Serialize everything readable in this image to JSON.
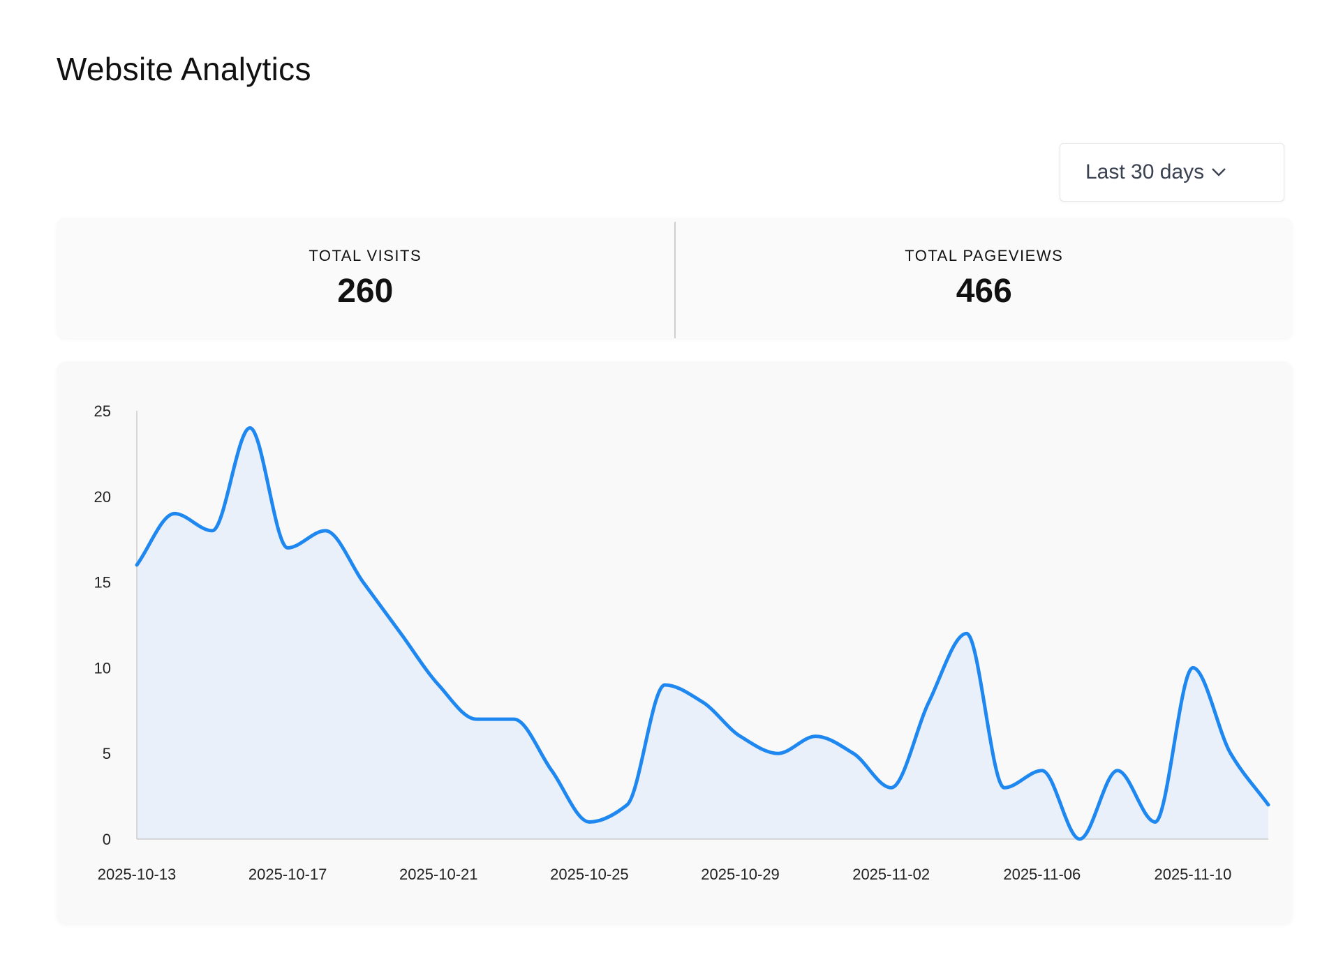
{
  "header": {
    "title": "Website Analytics"
  },
  "range_selector": {
    "selected": "Last 30 days"
  },
  "stats": [
    {
      "label": "TOTAL VISITS",
      "value": "260"
    },
    {
      "label": "TOTAL PAGEVIEWS",
      "value": "466"
    }
  ],
  "colors": {
    "line": "#1e88f0",
    "fill": "#eaf0fa",
    "axis": "#cccccc"
  },
  "chart_data": {
    "type": "area",
    "title": "",
    "xlabel": "",
    "ylabel": "",
    "ylim": [
      0,
      25
    ],
    "yticks": [
      0,
      5,
      10,
      15,
      20,
      25
    ],
    "x": [
      "2025-10-13",
      "2025-10-14",
      "2025-10-15",
      "2025-10-16",
      "2025-10-17",
      "2025-10-18",
      "2025-10-19",
      "2025-10-20",
      "2025-10-21",
      "2025-10-22",
      "2025-10-23",
      "2025-10-24",
      "2025-10-25",
      "2025-10-26",
      "2025-10-27",
      "2025-10-28",
      "2025-10-29",
      "2025-10-30",
      "2025-10-31",
      "2025-11-01",
      "2025-11-02",
      "2025-11-03",
      "2025-11-04",
      "2025-11-05",
      "2025-11-06",
      "2025-11-07",
      "2025-11-08",
      "2025-11-09",
      "2025-11-10",
      "2025-11-11",
      "2025-11-12"
    ],
    "xtick_labels": [
      "2025-10-13",
      "2025-10-17",
      "2025-10-21",
      "2025-10-25",
      "2025-10-29",
      "2025-11-02",
      "2025-11-06",
      "2025-11-10"
    ],
    "series": [
      {
        "name": "Visits",
        "values": [
          16,
          19,
          18,
          24,
          17,
          18,
          15,
          12,
          9,
          7,
          7,
          4,
          1,
          2,
          9,
          8,
          6,
          5,
          6,
          5,
          3,
          8,
          12,
          3,
          4,
          0,
          4,
          1,
          10,
          5,
          2
        ]
      }
    ],
    "grid": false,
    "legend": "none"
  }
}
